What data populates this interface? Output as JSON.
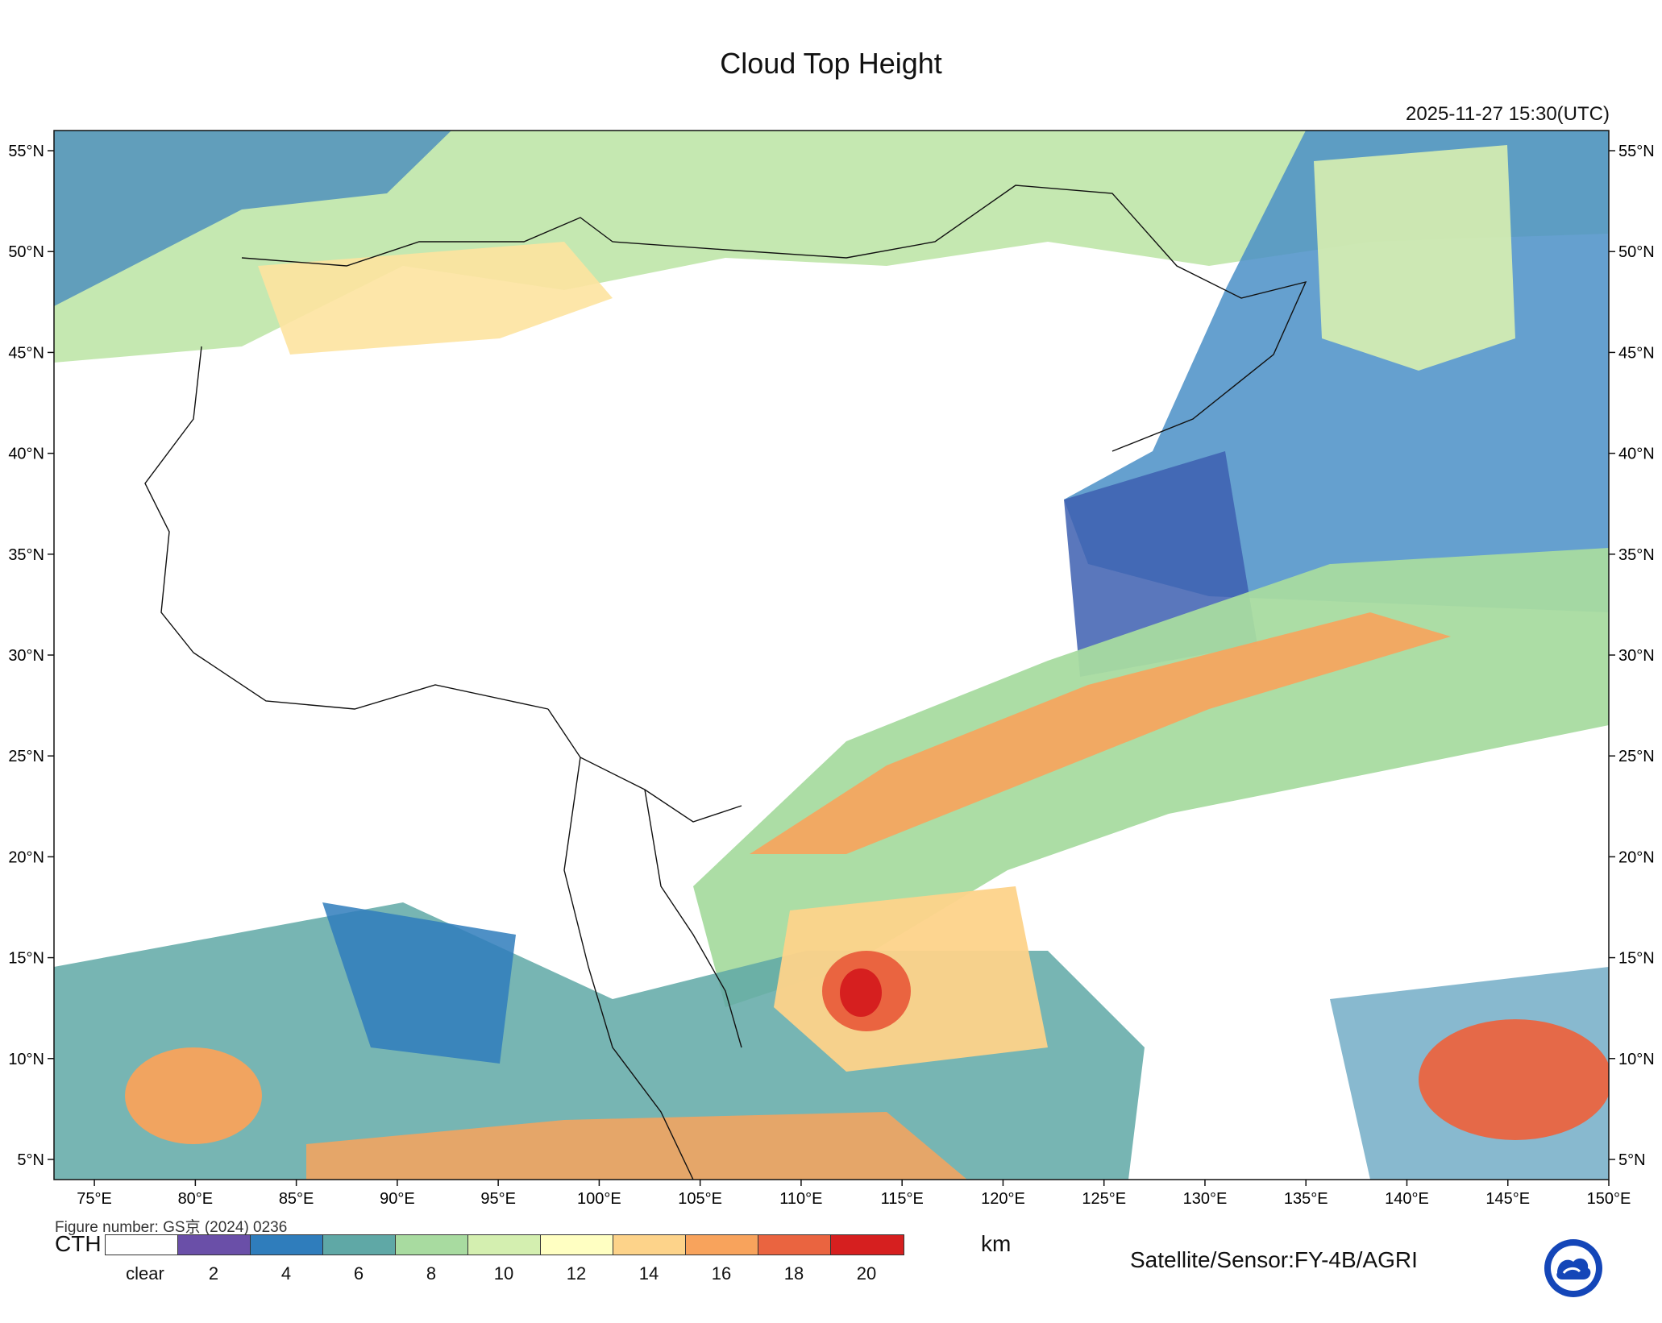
{
  "title": "Cloud Top Height",
  "timestamp": "2025-11-27 15:30(UTC)",
  "map": {
    "lon_range": [
      73,
      150
    ],
    "lat_range": [
      4,
      56
    ],
    "lon_ticks": [
      "75°E",
      "80°E",
      "85°E",
      "90°E",
      "95°E",
      "100°E",
      "105°E",
      "110°E",
      "115°E",
      "120°E",
      "125°E",
      "130°E",
      "135°E",
      "140°E",
      "145°E",
      "150°E"
    ],
    "lat_ticks": [
      "5°N",
      "10°N",
      "15°N",
      "20°N",
      "25°N",
      "30°N",
      "35°N",
      "40°N",
      "45°N",
      "50°N",
      "55°N"
    ]
  },
  "figure_number": "Figure number: GS京 (2024) 0236",
  "colorbar": {
    "label": "CTH",
    "unit": "km",
    "colors": [
      "#ffffff",
      "#6a4fa8",
      "#2f7dbc",
      "#5fa8a6",
      "#a8dba0",
      "#d4efb0",
      "#ffffc2",
      "#fdd38a",
      "#f8a35c",
      "#ea6440",
      "#d61f1f"
    ],
    "tick_labels": [
      "clear",
      "2",
      "4",
      "6",
      "8",
      "10",
      "12",
      "14",
      "16",
      "18",
      "20"
    ]
  },
  "sensor_text": "Satellite/Sensor:FY-4B/AGRI",
  "logo_icon": "cma-logo-icon"
}
